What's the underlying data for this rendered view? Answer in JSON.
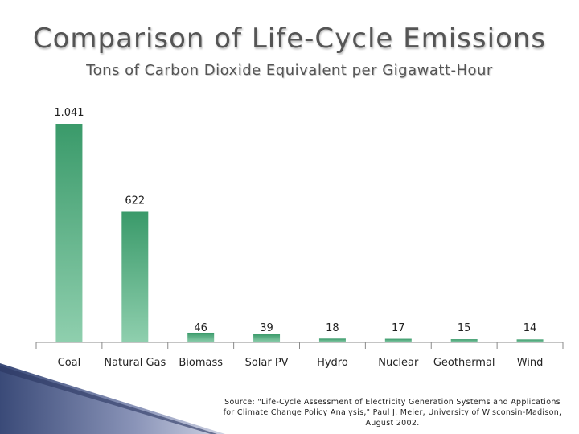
{
  "title": "Comparison of Life-Cycle Emissions",
  "subtitle": "Tons of Carbon Dioxide Equivalent per Gigawatt-Hour",
  "source": {
    "line1": "Source: \"Life-Cycle Assessment of Electricity Generation Systems and Applications",
    "line2": "for Climate Change Policy Analysis,\" Paul J. Meier, University of Wisconsin-Madison,",
    "line3": "August 2002."
  },
  "colors": {
    "bar_top": "#3a9a6a",
    "bar_bottom": "#8fcfae",
    "axis": "#8a8a8a"
  },
  "chart_data": {
    "type": "bar",
    "title": "Comparison of Life-Cycle Emissions",
    "subtitle": "Tons of Carbon Dioxide Equivalent per Gigawatt-Hour",
    "categories": [
      "Coal",
      "Natural Gas",
      "Biomass",
      "Solar PV",
      "Hydro",
      "Nuclear",
      "Geothermal",
      "Wind"
    ],
    "values": [
      1041,
      622,
      46,
      39,
      18,
      17,
      15,
      14
    ],
    "data_labels": [
      "1.041",
      "622",
      "46",
      "39",
      "18",
      "17",
      "15",
      "14"
    ],
    "xlabel": "",
    "ylabel": "",
    "ylim": [
      0,
      1041
    ],
    "grid": false
  }
}
